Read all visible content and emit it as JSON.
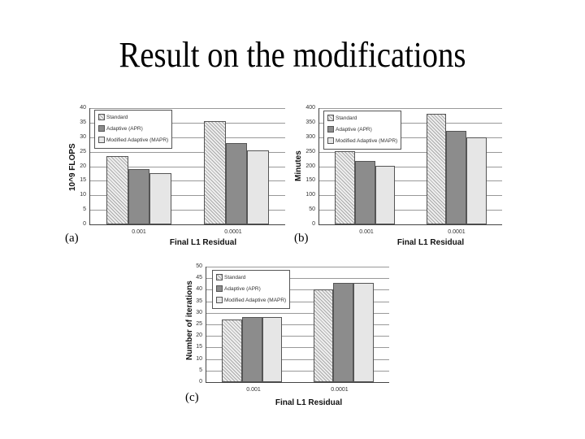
{
  "slide": {
    "title": "Result on the modifications"
  },
  "legend": [
    "Standard",
    "Adaptive (APR)",
    "Modified Adaptive (MAPR)"
  ],
  "chart_data": [
    {
      "type": "bar",
      "panel": "(a)",
      "title": "",
      "xlabel": "Final L1 Residual",
      "ylabel": "10^9 FLOPS",
      "categories": [
        "0.001",
        "0.0001"
      ],
      "series": [
        {
          "name": "Standard",
          "values": [
            23.5,
            35.5
          ]
        },
        {
          "name": "Adaptive (APR)",
          "values": [
            19,
            28
          ]
        },
        {
          "name": "Modified Adaptive (MAPR)",
          "values": [
            17.5,
            25.5
          ]
        }
      ],
      "ylim": [
        0,
        40
      ],
      "yticks": [
        0,
        5,
        10,
        15,
        20,
        25,
        30,
        35,
        40
      ],
      "grid": true,
      "legend_position": "upper left"
    },
    {
      "type": "bar",
      "panel": "(b)",
      "title": "",
      "xlabel": "Final L1 Residual",
      "ylabel": "Minutes",
      "categories": [
        "0.001",
        "0.0001"
      ],
      "series": [
        {
          "name": "Standard",
          "values": [
            252,
            380
          ]
        },
        {
          "name": "Adaptive (APR)",
          "values": [
            218,
            323
          ]
        },
        {
          "name": "Modified Adaptive (MAPR)",
          "values": [
            202,
            298
          ]
        }
      ],
      "ylim": [
        0,
        400
      ],
      "yticks": [
        0,
        50,
        100,
        150,
        200,
        250,
        300,
        350,
        400
      ],
      "grid": true,
      "legend_position": "upper left"
    },
    {
      "type": "bar",
      "panel": "(c)",
      "title": "",
      "xlabel": "Final L1 Residual",
      "ylabel": "Number of iterations",
      "categories": [
        "0.001",
        "0.0001"
      ],
      "series": [
        {
          "name": "Standard",
          "values": [
            27,
            40
          ]
        },
        {
          "name": "Adaptive (APR)",
          "values": [
            28,
            43
          ]
        },
        {
          "name": "Modified Adaptive (MAPR)",
          "values": [
            28,
            43
          ]
        }
      ],
      "ylim": [
        0,
        50
      ],
      "yticks": [
        0,
        5,
        10,
        15,
        20,
        25,
        30,
        35,
        40,
        45,
        50
      ],
      "grid": true,
      "legend_position": "upper left"
    }
  ]
}
